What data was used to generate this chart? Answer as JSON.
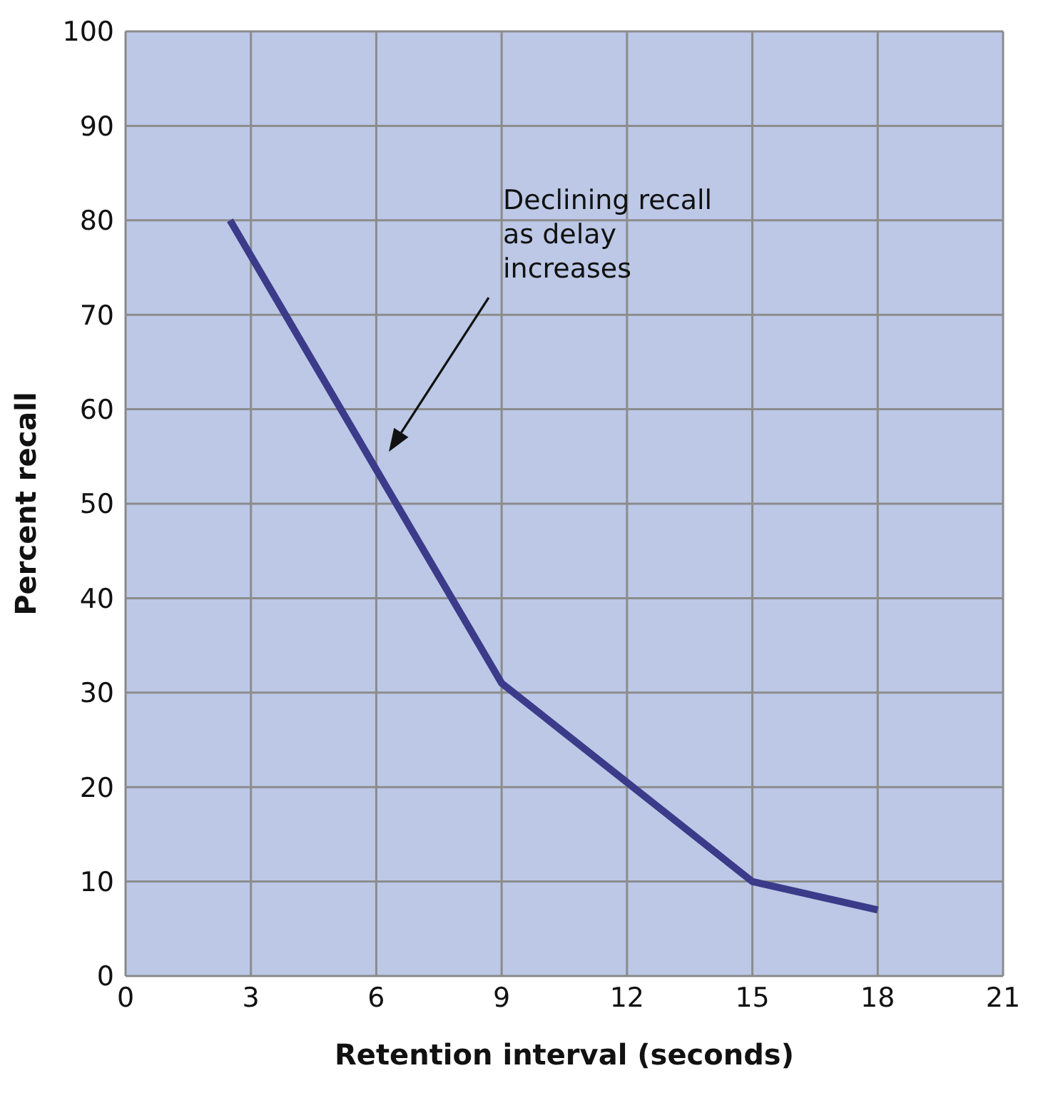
{
  "chart_data": {
    "type": "line",
    "xlabel": "Retention interval (seconds)",
    "ylabel": "Percent recall",
    "x": [
      2.5,
      9,
      15,
      18
    ],
    "series": [
      {
        "color": "#3b3b8a",
        "values": [
          80,
          31,
          10,
          7
        ]
      }
    ],
    "xlim": [
      0,
      21
    ],
    "xticks": [
      0,
      3,
      6,
      9,
      12,
      15,
      18,
      21
    ],
    "ylim": [
      0,
      100
    ],
    "yticks": [
      0,
      10,
      20,
      30,
      40,
      50,
      60,
      70,
      80,
      90,
      100
    ],
    "grid": true,
    "legend": false,
    "marker": "none",
    "line_style": "solid",
    "annotations": [
      "Declining recall\nas delay\nincreases"
    ]
  }
}
